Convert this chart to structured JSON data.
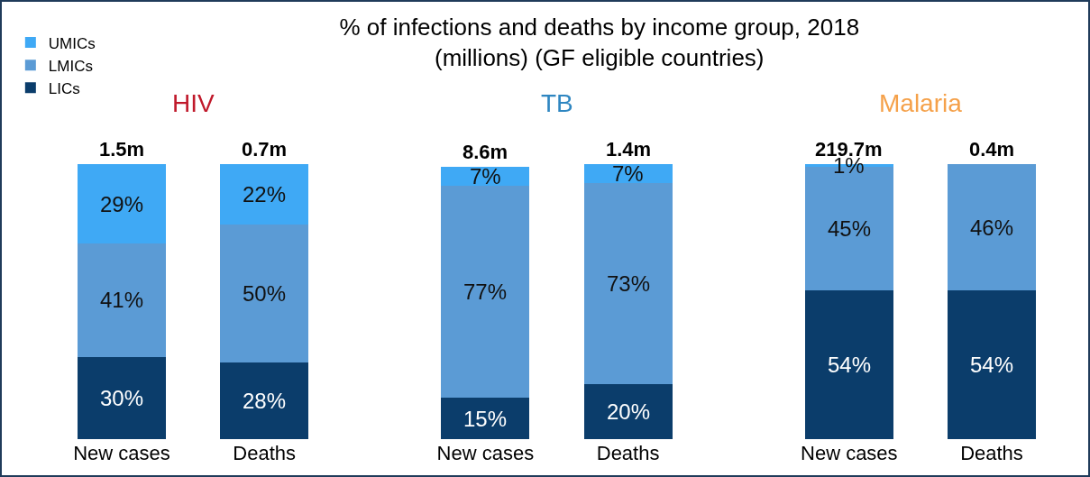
{
  "chart_data": {
    "type": "bar",
    "title": "% of infections and deaths by income group, 2018\n(millions) (GF eligible countries)",
    "categories": [
      "New cases",
      "Deaths",
      "New cases",
      "Deaths",
      "New cases",
      "Deaths"
    ],
    "series": [
      {
        "name": "LICs",
        "color": "#0b3d6b",
        "values": [
          30,
          28,
          15,
          20,
          54,
          54
        ],
        "value_labels": [
          "30%",
          "28%",
          "15%",
          "20%",
          "54%",
          "54%"
        ]
      },
      {
        "name": "LMICs",
        "color": "#5b9bd5",
        "values": [
          41,
          50,
          77,
          73,
          45,
          46
        ],
        "value_labels": [
          "41%",
          "50%",
          "77%",
          "73%",
          "45%",
          "46%"
        ]
      },
      {
        "name": "UMICs",
        "color": "#3fa9f5",
        "values": [
          29,
          22,
          7,
          7,
          1,
          null
        ],
        "value_labels": [
          "29%",
          "22%",
          "7%",
          "7%",
          "1%",
          null
        ]
      }
    ],
    "stacked": true,
    "legend": "top left",
    "grid": false,
    "annotations": [
      "HIV",
      "TB",
      "Malaria",
      "1.5m",
      "0.7m",
      "8.6m",
      "1.4m",
      "219.7m",
      "0.4m"
    ]
  }
}
